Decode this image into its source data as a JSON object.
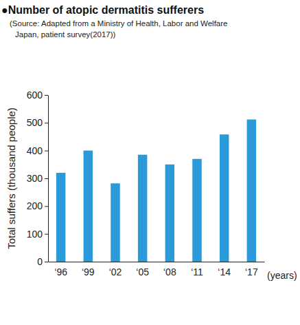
{
  "chart_data": {
    "type": "bar",
    "title": "●Number of atopic dermatitis sufferers",
    "subtitle": [
      "(Source: Adapted from a Ministry of Health, Labor and Welfare",
      "Japan, patient survey(2017))"
    ],
    "ylabel": "Total suffers (thousand people)",
    "xlabel": "(years)",
    "categories": [
      "‘96",
      "‘99",
      "‘02",
      "‘05",
      "‘08",
      "‘11",
      "‘14",
      "‘17"
    ],
    "values": [
      320,
      400,
      282,
      385,
      350,
      370,
      458,
      512
    ],
    "color": "#2b9ad8",
    "ylim": [
      0,
      600
    ],
    "yticks": [
      0,
      100,
      200,
      300,
      400,
      500,
      600
    ],
    "grid": false
  }
}
